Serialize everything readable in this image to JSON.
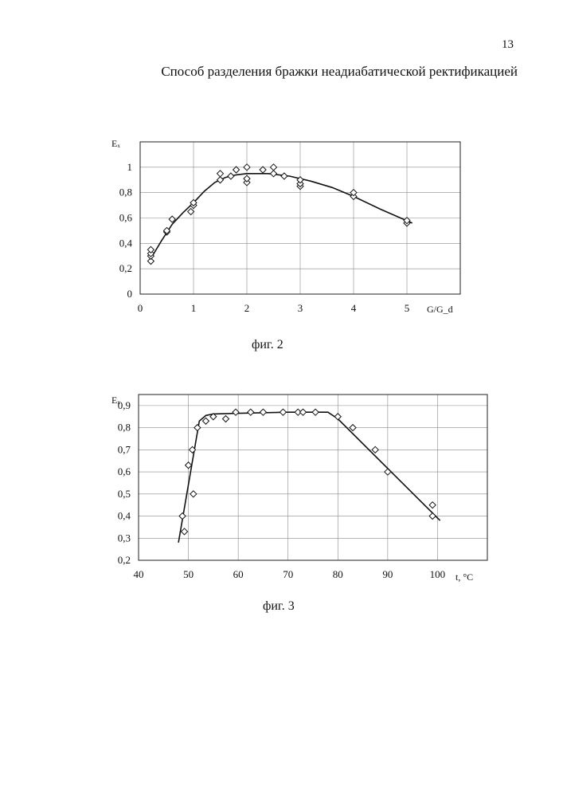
{
  "page": {
    "number": "13",
    "title": "Способ разделения бражки неадиабатической ректификацией"
  },
  "chart_data": [
    {
      "type": "scatter",
      "caption": "фиг. 2",
      "ylabel": "Eₓ",
      "xlabel": "G/G_d",
      "xlim": [
        0,
        6
      ],
      "ylim": [
        0,
        1.2
      ],
      "x_ticks": [
        0,
        1,
        2,
        3,
        4,
        5
      ],
      "y_ticks": [
        0,
        0.2,
        0.4,
        0.6,
        0.8,
        1
      ],
      "x_tick_labels": [
        "0",
        "1",
        "2",
        "3",
        "4",
        "5"
      ],
      "y_tick_labels": [
        "0",
        "0,2",
        "0,4",
        "0,6",
        "0,8",
        "1"
      ],
      "grid": true,
      "series": [
        {
          "points": [
            [
              0.2,
              0.26
            ],
            [
              0.2,
              0.3
            ],
            [
              0.2,
              0.32
            ],
            [
              0.2,
              0.35
            ],
            [
              0.5,
              0.49
            ],
            [
              0.5,
              0.5
            ],
            [
              0.6,
              0.59
            ],
            [
              0.95,
              0.65
            ],
            [
              1.0,
              0.7
            ],
            [
              1.0,
              0.72
            ],
            [
              1.5,
              0.9
            ],
            [
              1.5,
              0.95
            ],
            [
              1.7,
              0.93
            ],
            [
              1.8,
              0.98
            ],
            [
              2.0,
              0.88
            ],
            [
              2.0,
              0.91
            ],
            [
              2.0,
              1.0
            ],
            [
              2.3,
              0.98
            ],
            [
              2.5,
              0.95
            ],
            [
              2.5,
              1.0
            ],
            [
              2.7,
              0.93
            ],
            [
              3.0,
              0.85
            ],
            [
              3.0,
              0.87
            ],
            [
              3.0,
              0.9
            ],
            [
              4.0,
              0.77
            ],
            [
              4.0,
              0.8
            ],
            [
              5.0,
              0.56
            ],
            [
              5.0,
              0.58
            ]
          ],
          "trend": [
            [
              0.2,
              0.28
            ],
            [
              0.4,
              0.42
            ],
            [
              0.6,
              0.55
            ],
            [
              0.8,
              0.64
            ],
            [
              1.0,
              0.72
            ],
            [
              1.2,
              0.81
            ],
            [
              1.4,
              0.88
            ],
            [
              1.6,
              0.92
            ],
            [
              1.8,
              0.94
            ],
            [
              2.0,
              0.95
            ],
            [
              2.4,
              0.95
            ],
            [
              2.8,
              0.93
            ],
            [
              3.2,
              0.89
            ],
            [
              3.6,
              0.84
            ],
            [
              4.0,
              0.77
            ],
            [
              4.5,
              0.67
            ],
            [
              5.1,
              0.56
            ]
          ]
        }
      ]
    },
    {
      "type": "scatter",
      "caption": "фиг. 3",
      "ylabel": "Eₓ",
      "xlabel": "t, °C",
      "xlim": [
        40,
        110
      ],
      "ylim": [
        0.2,
        0.95
      ],
      "x_ticks": [
        40,
        50,
        60,
        70,
        80,
        90,
        100
      ],
      "y_ticks": [
        0.2,
        0.3,
        0.4,
        0.5,
        0.6,
        0.7,
        0.8,
        0.9
      ],
      "x_tick_labels": [
        "40",
        "50",
        "60",
        "70",
        "80",
        "90",
        "100"
      ],
      "y_tick_labels": [
        "0,2",
        "0,3",
        "0,4",
        "0,5",
        "0,6",
        "0,7",
        "0,8",
        "0,9"
      ],
      "grid": true,
      "series": [
        {
          "points": [
            [
              48.8,
              0.4
            ],
            [
              49.2,
              0.33
            ],
            [
              50,
              0.63
            ],
            [
              50.8,
              0.7
            ],
            [
              51,
              0.5
            ],
            [
              51.8,
              0.8
            ],
            [
              53.5,
              0.83
            ],
            [
              55,
              0.85
            ],
            [
              57.5,
              0.84
            ],
            [
              59.5,
              0.87
            ],
            [
              62.5,
              0.87
            ],
            [
              65,
              0.87
            ],
            [
              69,
              0.87
            ],
            [
              72,
              0.87
            ],
            [
              73,
              0.87
            ],
            [
              75.5,
              0.87
            ],
            [
              80,
              0.85
            ],
            [
              83,
              0.8
            ],
            [
              87.5,
              0.7
            ],
            [
              90,
              0.6
            ],
            [
              99,
              0.45
            ],
            [
              99,
              0.4
            ]
          ],
          "trend": [
            [
              48,
              0.28
            ],
            [
              52.2,
              0.83
            ],
            [
              53.5,
              0.855
            ],
            [
              55,
              0.862
            ],
            [
              60,
              0.865
            ],
            [
              70,
              0.87
            ],
            [
              78,
              0.87
            ],
            [
              80,
              0.84
            ],
            [
              100.5,
              0.38
            ]
          ]
        }
      ]
    }
  ]
}
